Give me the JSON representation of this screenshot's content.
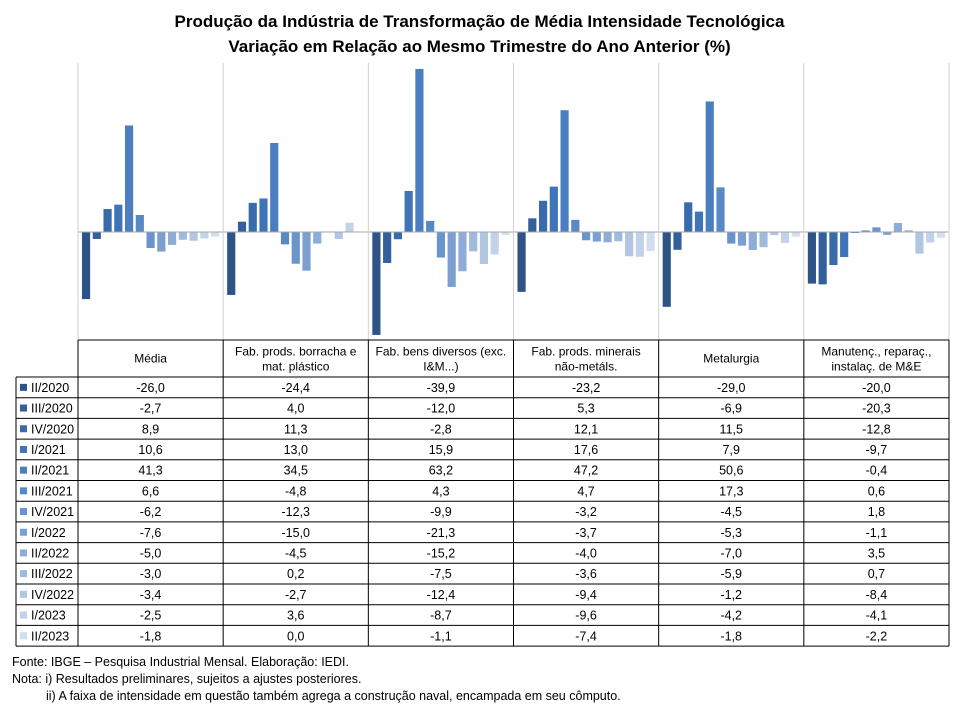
{
  "chart_data": {
    "type": "bar",
    "title": "Produção da Indústria de Transformação de Média Intensidade Tecnológica",
    "subtitle": "Variação em Relação ao Mesmo Trimestre do Ano Anterior (%)",
    "categories": [
      "Média",
      "Fab. prods. borracha e mat. plástico",
      "Fab. bens diversos (exc. I&M...)",
      "Fab. prods. minerais não-metáls.",
      "Metalurgia",
      "Manutenç., reparaç., instalaç. de M&E"
    ],
    "category_lines": [
      [
        "Média"
      ],
      [
        "Fab. prods. borracha e",
        "mat. plástico"
      ],
      [
        "Fab. bens diversos (exc.",
        "I&M...)"
      ],
      [
        "Fab. prods. minerais",
        "não-metáls."
      ],
      [
        "Metalurgia"
      ],
      [
        "Manutenç., reparaç.,",
        "instalaç. de M&E"
      ]
    ],
    "series": [
      {
        "name": "II/2020",
        "color": "#2e5486",
        "values": [
          -26.0,
          -24.4,
          -39.9,
          -23.2,
          -29.0,
          -20.0
        ],
        "labels": [
          "-26,0",
          "-24,4",
          "-39,9",
          "-23,2",
          "-29,0",
          "-20,0"
        ]
      },
      {
        "name": "III/2020",
        "color": "#33609b",
        "values": [
          -2.7,
          4.0,
          -12.0,
          5.3,
          -6.9,
          -20.3
        ],
        "labels": [
          "-2,7",
          "4,0",
          "-12,0",
          "5,3",
          "-6,9",
          "-20,3"
        ]
      },
      {
        "name": "IV/2020",
        "color": "#386aac",
        "values": [
          8.9,
          11.3,
          -2.8,
          12.1,
          11.5,
          -12.8
        ],
        "labels": [
          "8,9",
          "11,3",
          "-2,8",
          "12,1",
          "11,5",
          "-12,8"
        ]
      },
      {
        "name": "I/2021",
        "color": "#3f74b9",
        "values": [
          10.6,
          13.0,
          15.9,
          17.6,
          7.9,
          -9.7
        ],
        "labels": [
          "10,6",
          "13,0",
          "15,9",
          "17,6",
          "7,9",
          "-9,7"
        ]
      },
      {
        "name": "II/2021",
        "color": "#4a7ec1",
        "values": [
          41.3,
          34.5,
          63.2,
          47.2,
          50.6,
          -0.4
        ],
        "labels": [
          "41,3",
          "34,5",
          "63,2",
          "47,2",
          "50,6",
          "-0,4"
        ]
      },
      {
        "name": "III/2021",
        "color": "#5789c7",
        "values": [
          6.6,
          -4.8,
          4.3,
          4.7,
          17.3,
          0.6
        ],
        "labels": [
          "6,6",
          "-4,8",
          "4,3",
          "4,7",
          "17,3",
          "0,6"
        ]
      },
      {
        "name": "IV/2021",
        "color": "#6994cc",
        "values": [
          -6.2,
          -12.3,
          -9.9,
          -3.2,
          -4.5,
          1.8
        ],
        "labels": [
          "-6,2",
          "-12,3",
          "-9,9",
          "-3,2",
          "-4,5",
          "1,8"
        ]
      },
      {
        "name": "I/2022",
        "color": "#7c9fd1",
        "values": [
          -7.6,
          -15.0,
          -21.3,
          -3.7,
          -5.3,
          -1.1
        ],
        "labels": [
          "-7,6",
          "-15,0",
          "-21,3",
          "-3,7",
          "-5,3",
          "-1,1"
        ]
      },
      {
        "name": "II/2022",
        "color": "#8eacd7",
        "values": [
          -5.0,
          -4.5,
          -15.2,
          -4.0,
          -7.0,
          3.5
        ],
        "labels": [
          "-5,0",
          "-4,5",
          "-15,2",
          "-4,0",
          "-7,0",
          "3,5"
        ]
      },
      {
        "name": "III/2022",
        "color": "#a0badd",
        "values": [
          -3.0,
          0.2,
          -7.5,
          -3.6,
          -5.9,
          0.7
        ],
        "labels": [
          "-3,0",
          "0,2",
          "-7,5",
          "-3,6",
          "-5,9",
          "0,7"
        ]
      },
      {
        "name": "IV/2022",
        "color": "#b1c6e3",
        "values": [
          -3.4,
          -2.7,
          -12.4,
          -9.4,
          -1.2,
          -8.4
        ],
        "labels": [
          "-3,4",
          "-2,7",
          "-12,4",
          "-9,4",
          "-1,2",
          "-8,4"
        ]
      },
      {
        "name": "I/2023",
        "color": "#c2d2e9",
        "values": [
          -2.5,
          3.6,
          -8.7,
          -9.6,
          -4.2,
          -4.1
        ],
        "labels": [
          "-2,5",
          "3,6",
          "-8,7",
          "-9,6",
          "-4,2",
          "-4,1"
        ]
      },
      {
        "name": "II/2023",
        "color": "#d2ddee",
        "values": [
          -1.8,
          0.0,
          -1.1,
          -7.4,
          -1.8,
          -2.2
        ],
        "labels": [
          "-1,8",
          "0,0",
          "-1,1",
          "-7,4",
          "-1,8",
          "-2,2"
        ]
      }
    ],
    "ylim": [
      -40,
      65
    ],
    "grid": false,
    "legend": "data-table"
  },
  "notes": [
    "Fonte: IBGE – Pesquisa Industrial Mensal. Elaboração: IEDI.",
    "Nota: i) Resultados preliminares, sujeitos a ajustes posteriores.",
    "ii) A faixa de intensidade em questão também agrega a construção naval, encampada em seu cômputo."
  ]
}
